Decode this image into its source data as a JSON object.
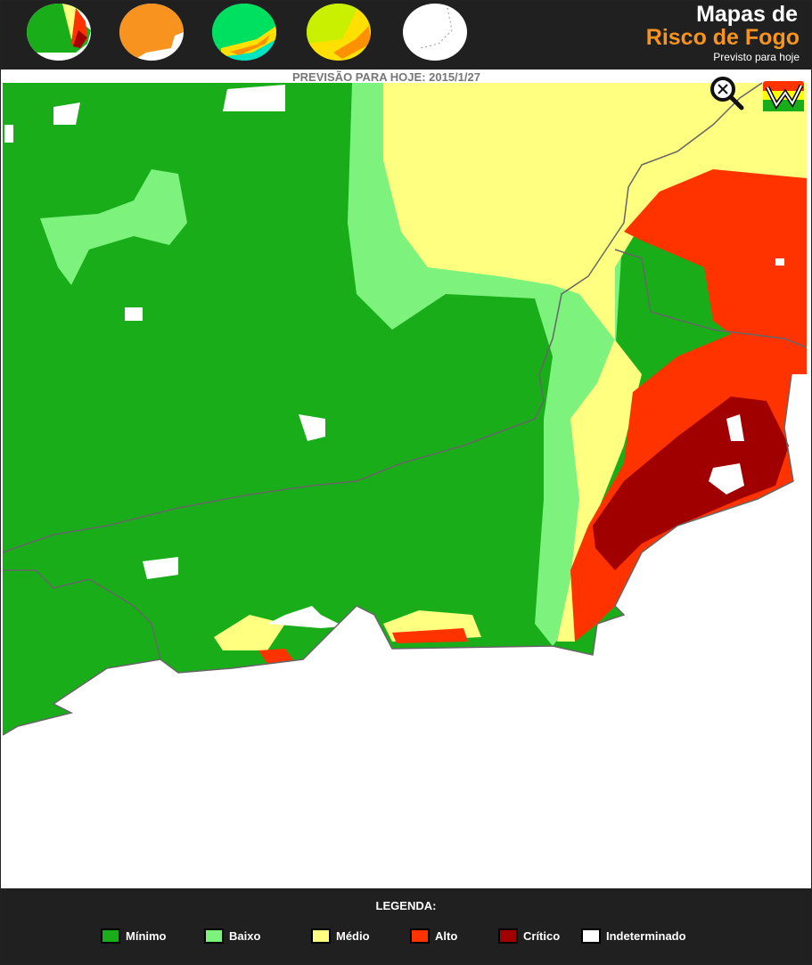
{
  "header": {
    "title_line1": "Mapas de",
    "title_line2": "Risco de Fogo",
    "subtitle": "Previsto para hoje",
    "thumbnails": [
      "risco-de-fogo",
      "dias-sem-chuva",
      "precipitacao",
      "temperatura",
      "focos"
    ]
  },
  "forecast_label": "PREVISÃO PARA HOJE: 2015/1/27",
  "map": {
    "zoom_icon": "magnifier-zoom-icon",
    "logo_icon": "risk-logo-icon"
  },
  "legend": {
    "title": "LEGENDA:",
    "items": [
      {
        "label": "Mínimo",
        "color": "#1aad1a"
      },
      {
        "label": "Baixo",
        "color": "#7df27d"
      },
      {
        "label": "Médio",
        "color": "#ffff80"
      },
      {
        "label": "Alto",
        "color": "#ff3300"
      },
      {
        "label": "Crítico",
        "color": "#a00000"
      },
      {
        "label": "Indeterminado",
        "color": "#ffffff"
      }
    ]
  }
}
